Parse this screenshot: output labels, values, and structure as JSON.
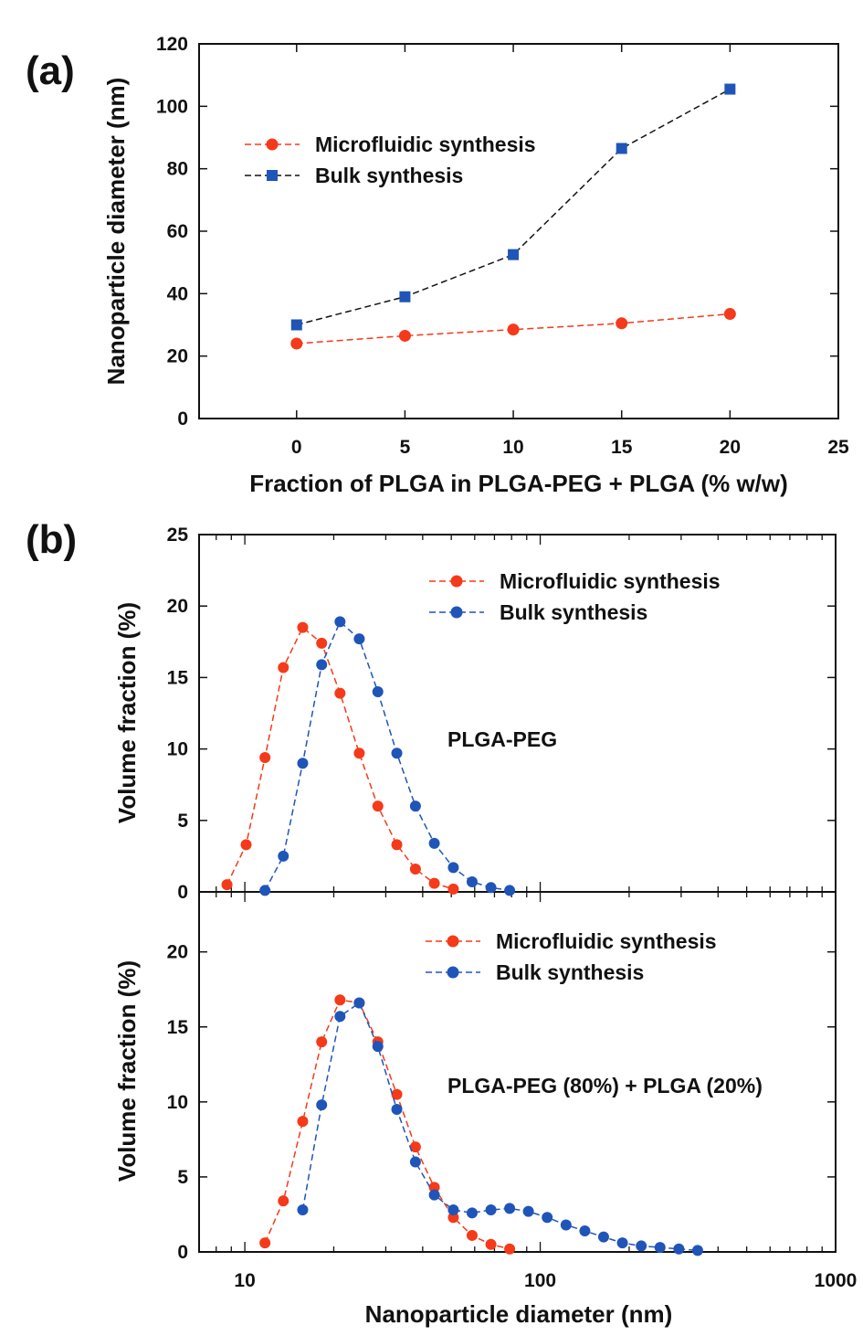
{
  "colors": {
    "red": "#f43a1a",
    "blue": "#1f55b8",
    "black": "#111111"
  },
  "chart_data": [
    {
      "id": "a",
      "type": "line",
      "panel_label": "(a)",
      "xlabel": "Fraction of PLGA in PLGA-PEG + PLGA (% w/w)",
      "ylabel": "Nanoparticle diameter (nm)",
      "xlim": [
        -4.5,
        25
      ],
      "ylim": [
        0,
        120
      ],
      "xticks": [
        0,
        5,
        10,
        15,
        20,
        25
      ],
      "yticks": [
        0,
        20,
        40,
        60,
        80,
        100,
        120
      ],
      "legend_position": "upper-left",
      "series": [
        {
          "name": "Microfluidic synthesis",
          "marker": "circle",
          "color": "#f43a1a",
          "line_color": "#f43a1a",
          "x": [
            0,
            5,
            10,
            15,
            20
          ],
          "y": [
            24,
            26.5,
            28.5,
            30.5,
            33.5
          ]
        },
        {
          "name": "Bulk synthesis",
          "marker": "square",
          "color": "#1f55b8",
          "line_color": "#111111",
          "x": [
            0,
            5,
            10,
            15,
            20
          ],
          "y": [
            30,
            39,
            52.5,
            86.5,
            105.5
          ]
        }
      ]
    },
    {
      "id": "b1",
      "type": "line",
      "panel_label": "(b)",
      "xscale": "log",
      "xlim": [
        7,
        1000
      ],
      "ylim": [
        0,
        25
      ],
      "yticks": [
        0,
        5,
        10,
        15,
        20,
        25
      ],
      "ylabel": "Volume fraction (%)",
      "annotation": "PLGA-PEG",
      "legend_position": "upper-right",
      "series": [
        {
          "name": "Microfluidic synthesis",
          "marker": "circle",
          "color": "#f43a1a",
          "line_color": "#f43a1a",
          "x": [
            8.7,
            10.1,
            11.7,
            13.5,
            15.7,
            18.2,
            21.0,
            24.4,
            28.2,
            32.7,
            37.8,
            43.8,
            50.8
          ],
          "y": [
            0.5,
            3.3,
            9.4,
            15.7,
            18.5,
            17.4,
            13.9,
            9.7,
            6.0,
            3.3,
            1.6,
            0.6,
            0.2
          ]
        },
        {
          "name": "Bulk synthesis",
          "marker": "circle",
          "color": "#1f55b8",
          "line_color": "#1f55b8",
          "x": [
            11.7,
            13.5,
            15.7,
            18.2,
            21.0,
            24.4,
            28.2,
            32.7,
            37.8,
            43.8,
            50.8,
            58.8,
            68.1,
            78.8
          ],
          "y": [
            0.1,
            2.5,
            9.0,
            15.9,
            18.9,
            17.7,
            14.0,
            9.7,
            6.0,
            3.4,
            1.7,
            0.7,
            0.3,
            0.1
          ]
        }
      ]
    },
    {
      "id": "b2",
      "type": "line",
      "xscale": "log",
      "xlim": [
        7,
        1000
      ],
      "ylim": [
        0,
        20
      ],
      "yticks": [
        0,
        5,
        10,
        15,
        20
      ],
      "xticks": [
        10,
        100,
        1000
      ],
      "xlabel": "Nanoparticle diameter (nm)",
      "ylabel": "Volume fraction (%)",
      "annotation": "PLGA-PEG (80%) + PLGA (20%)",
      "legend_position": "upper-right",
      "series": [
        {
          "name": "Microfluidic synthesis",
          "marker": "circle",
          "color": "#f43a1a",
          "line_color": "#f43a1a",
          "x": [
            11.7,
            13.5,
            15.7,
            18.2,
            21.0,
            24.4,
            28.2,
            32.7,
            37.8,
            43.8,
            50.8,
            58.8,
            68.1,
            78.8
          ],
          "y": [
            0.6,
            3.4,
            8.7,
            14.0,
            16.8,
            16.6,
            14.0,
            10.5,
            7.0,
            4.3,
            2.3,
            1.1,
            0.5,
            0.2
          ]
        },
        {
          "name": "Bulk synthesis",
          "marker": "circle",
          "color": "#1f55b8",
          "line_color": "#1f55b8",
          "x": [
            15.7,
            18.2,
            21.0,
            24.4,
            28.2,
            32.7,
            37.8,
            43.8,
            50.8,
            58.8,
            68.1,
            78.8,
            91.2,
            105.6,
            122.3,
            141.6,
            163.9,
            189.8,
            219.8,
            254.5,
            294.7,
            341.2
          ],
          "y": [
            2.8,
            9.8,
            15.7,
            16.6,
            13.7,
            9.5,
            6.0,
            3.8,
            2.8,
            2.6,
            2.8,
            2.9,
            2.7,
            2.3,
            1.8,
            1.4,
            1.0,
            0.6,
            0.4,
            0.3,
            0.2,
            0.1
          ]
        }
      ]
    }
  ]
}
